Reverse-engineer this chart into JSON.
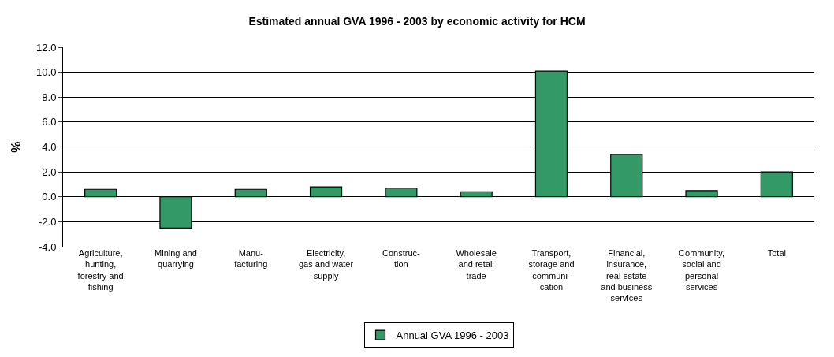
{
  "chart_data": {
    "type": "bar",
    "title": "Estimated annual GVA 1996 - 2003 by economic activity for HCM",
    "ylabel": "%",
    "categories": [
      "Agriculture,\nhunting,\nforestry and\nfishing",
      "Mining and\nquarrying",
      "Manu-\nfacturing",
      "Electricity,\ngas and water\nsupply",
      "Construc-\ntion",
      "Wholesale\nand retail\ntrade",
      "Transport,\nstorage and\ncommuni-\ncation",
      "Financial,\ninsurance,\nreal estate\nand business\nservices",
      "Community,\nsocial and\npersonal\nservices",
      "Total"
    ],
    "series": [
      {
        "name": "Annual GVA 1996 - 2003",
        "color": "#339966",
        "values": [
          0.6,
          -2.5,
          0.6,
          0.8,
          0.7,
          0.4,
          10.1,
          3.4,
          0.5,
          2.0
        ]
      }
    ],
    "ylim": [
      -4,
      12
    ],
    "yticks": [
      {
        "value": -4,
        "label": "-4.0"
      },
      {
        "value": -2,
        "label": "-2.0"
      },
      {
        "value": 0,
        "label": "0.0"
      },
      {
        "value": 2,
        "label": "2.0"
      },
      {
        "value": 4,
        "label": "4.0"
      },
      {
        "value": 6,
        "label": "6.0"
      },
      {
        "value": 8,
        "label": "8.0"
      },
      {
        "value": 10,
        "label": "10.0"
      },
      {
        "value": 12,
        "label": "12.0"
      }
    ],
    "grid": "y",
    "legend": "bottom"
  }
}
